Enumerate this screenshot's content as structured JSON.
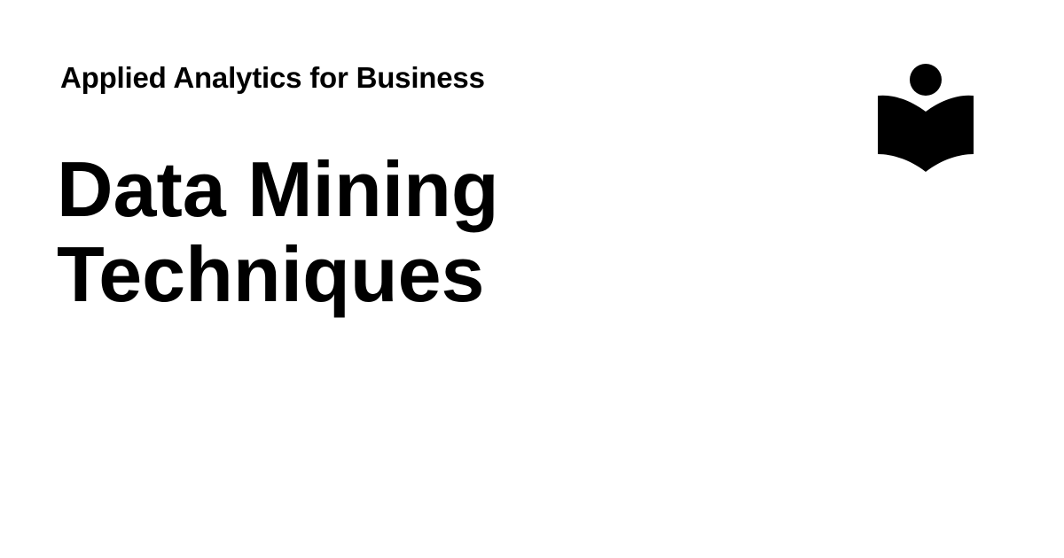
{
  "header": {
    "subtitle": "Applied Analytics for Business"
  },
  "main": {
    "title_lines": [
      "Data Mining",
      "Techniques"
    ]
  },
  "logo": {
    "icon": "reader-book-icon",
    "color": "#000000"
  },
  "colors": {
    "background": "#ffffff",
    "text": "#000000"
  }
}
